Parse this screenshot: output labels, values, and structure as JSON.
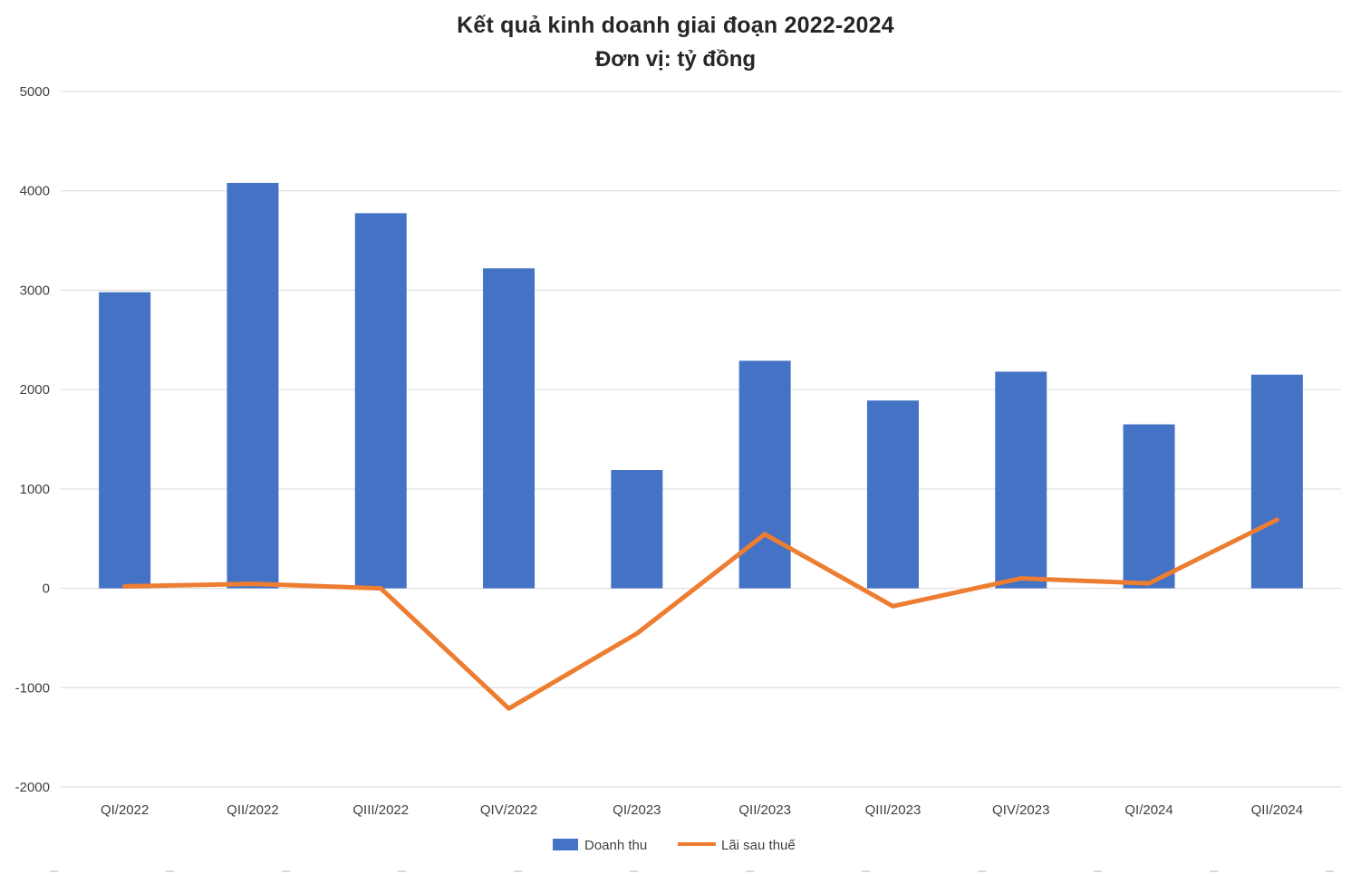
{
  "chart_data": {
    "type": "bar",
    "title": "Kết quả kinh doanh giai đoạn 2022-2024",
    "subtitle": "Đơn vị: tỷ đồng",
    "categories": [
      "QI/2022",
      "QII/2022",
      "QIII/2022",
      "QIV/2022",
      "QI/2023",
      "QII/2023",
      "QIII/2023",
      "QIV/2023",
      "QI/2024",
      "QII/2024"
    ],
    "series": [
      {
        "name": "Doanh thu",
        "type": "bar",
        "color": "#4472C4",
        "values": [
          2980,
          4080,
          3775,
          3220,
          1190,
          2290,
          1890,
          2180,
          1650,
          2150
        ]
      },
      {
        "name": "Lãi sau thuế",
        "type": "line",
        "color": "#ED7D31",
        "values": [
          20,
          45,
          0,
          -1210,
          -455,
          545,
          -180,
          100,
          50,
          690
        ]
      }
    ],
    "ylim": [
      -2000,
      5000
    ],
    "ytick_step": 1000,
    "yticks": [
      "-2000",
      "-1000",
      "0",
      "1000",
      "2000",
      "3000",
      "4000",
      "5000"
    ],
    "grid": true,
    "grid_color": "#D9D9D9",
    "axis_text_color": "#404040",
    "legend_position": "bottom",
    "legend": [
      "Doanh thu",
      "Lãi sau thuế"
    ]
  }
}
